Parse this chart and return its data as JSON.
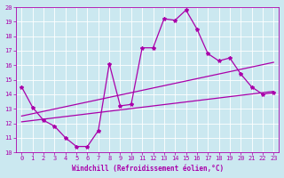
{
  "xlabel": "Windchill (Refroidissement éolien,°C)",
  "background_color": "#cbe8f0",
  "grid_color": "#ffffff",
  "line_color": "#aa00aa",
  "xlim": [
    -0.5,
    23.5
  ],
  "ylim": [
    10,
    20
  ],
  "xticks": [
    0,
    1,
    2,
    3,
    4,
    5,
    6,
    7,
    8,
    9,
    10,
    11,
    12,
    13,
    14,
    15,
    16,
    17,
    18,
    19,
    20,
    21,
    22,
    23
  ],
  "yticks": [
    10,
    11,
    12,
    13,
    14,
    15,
    16,
    17,
    18,
    19,
    20
  ],
  "line1_x": [
    0,
    1,
    2,
    3,
    4,
    5,
    6,
    7,
    8,
    9,
    10,
    11,
    12,
    13,
    14,
    15,
    16,
    17,
    18,
    19,
    20,
    21,
    22,
    23
  ],
  "line1_y": [
    14.5,
    13.1,
    12.2,
    11.8,
    11.0,
    10.4,
    10.4,
    11.5,
    16.1,
    13.2,
    13.3,
    17.2,
    17.2,
    19.2,
    19.1,
    19.8,
    18.5,
    16.8,
    16.3,
    16.5,
    15.4,
    14.5,
    14.0,
    14.1
  ],
  "line2_x": [
    0,
    23
  ],
  "line2_y": [
    12.5,
    16.2
  ],
  "line3_x": [
    0,
    23
  ],
  "line3_y": [
    12.1,
    14.2
  ],
  "marker": "*",
  "markersize": 3,
  "linewidth": 0.9,
  "tick_fontsize": 5,
  "xlabel_fontsize": 5.5
}
